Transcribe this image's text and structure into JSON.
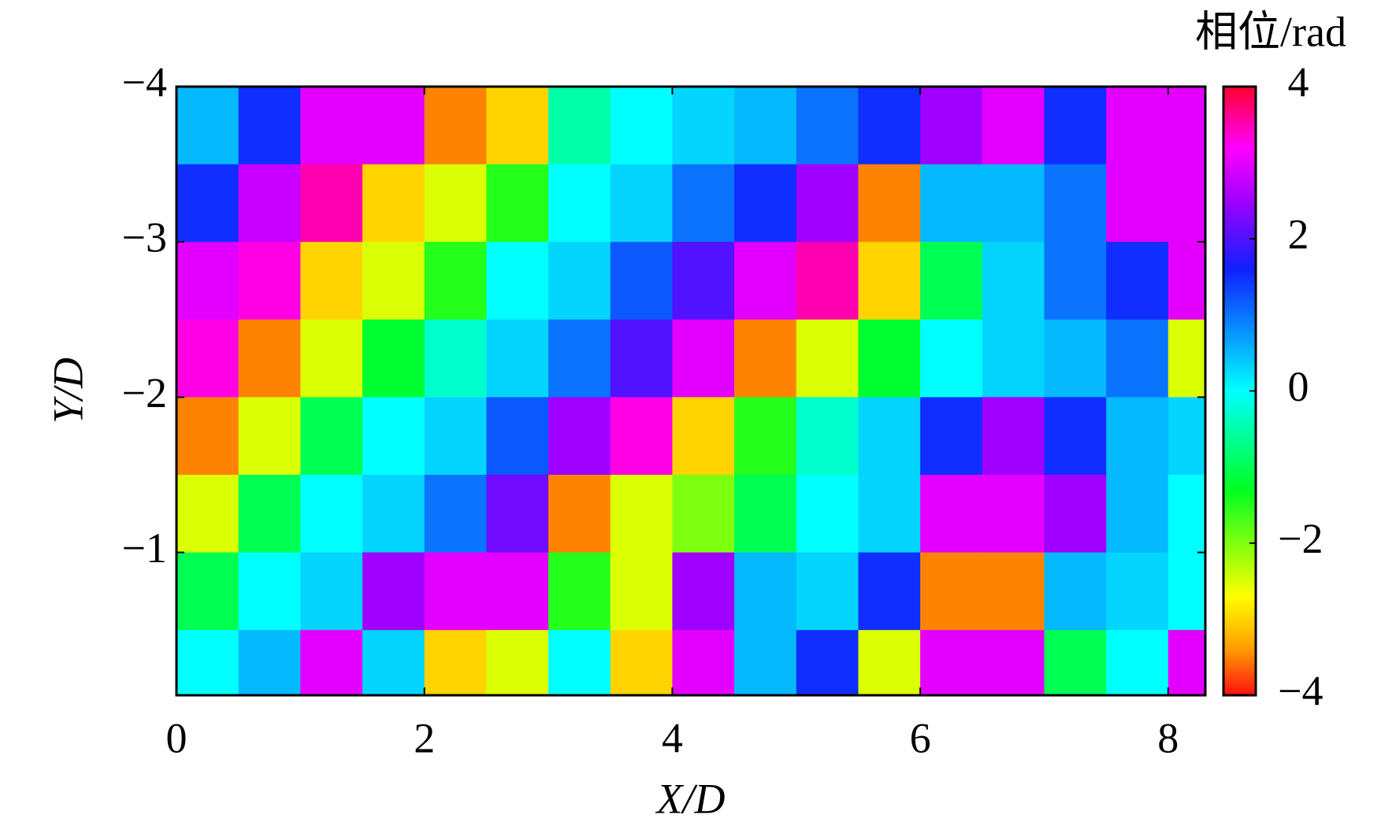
{
  "chart_data": {
    "type": "heatmap",
    "colorbar_title": "相位/rad",
    "x_label": "X/D",
    "y_label": "Y/D",
    "x": [
      0.25,
      0.75,
      1.25,
      1.75,
      2.25,
      2.75,
      3.25,
      3.75,
      4.25,
      4.75,
      5.25,
      5.75,
      6.25,
      6.75,
      7.25,
      7.75,
      8.25
    ],
    "y": [
      -3.75,
      -3.25,
      -2.75,
      -2.25,
      -1.75,
      -1.25,
      -0.75,
      -0.25
    ],
    "z": [
      [
        0.5,
        1.5,
        3,
        3,
        -3.5,
        -3,
        -0.5,
        0,
        0.3,
        0.5,
        1,
        1.5,
        2.5,
        3,
        1.5,
        3,
        3
      ],
      [
        1.5,
        2.8,
        3.5,
        -3,
        -2.5,
        -1.5,
        0,
        0.3,
        1,
        1.5,
        2.5,
        -3.5,
        0.5,
        0.5,
        1,
        3,
        3
      ],
      [
        3,
        3.3,
        -3,
        -2.5,
        -1.5,
        0,
        0.3,
        1.2,
        2,
        3,
        3.5,
        -3,
        -1,
        0.3,
        1,
        1.5,
        3
      ],
      [
        3.3,
        -3.5,
        -2.5,
        -1.2,
        -0.3,
        0.3,
        1,
        2,
        3,
        -3.5,
        -2.5,
        -1.2,
        0,
        0.3,
        0.5,
        1,
        -2.5
      ],
      [
        -3.5,
        -2.5,
        -1,
        0,
        0.3,
        1.2,
        2.5,
        3.3,
        -3,
        -1.5,
        -0.3,
        0.3,
        1.5,
        2.5,
        1.5,
        0.5,
        0.3
      ],
      [
        -2.5,
        -1,
        0,
        0.3,
        1,
        2.2,
        -3.5,
        -2.5,
        -2,
        -1,
        0,
        0.3,
        3,
        3,
        2.5,
        0.5,
        0
      ],
      [
        -1,
        0,
        0.3,
        2.5,
        3,
        3,
        -1.5,
        -2.5,
        2.5,
        0.5,
        0.3,
        1.5,
        -3.5,
        -3.5,
        0.5,
        0.3,
        0
      ],
      [
        0,
        0.5,
        3,
        0.3,
        -3,
        -2.5,
        0,
        -3,
        3,
        0.5,
        1.5,
        -2.5,
        3,
        3,
        -1,
        0,
        3
      ]
    ],
    "xlim": [
      0,
      8.3
    ],
    "ylim": [
      -4,
      -0.08
    ],
    "xticks": [
      0,
      2,
      4,
      6,
      8
    ],
    "yticks": [
      {
        "value": -4,
        "label": "−4"
      },
      {
        "value": -3,
        "label": "−3"
      },
      {
        "value": -2,
        "label": "−2"
      },
      {
        "value": -1,
        "label": "−1"
      }
    ],
    "clim": [
      -4,
      4
    ],
    "cticks": [
      {
        "value": -4,
        "label": "−4"
      },
      {
        "value": -2,
        "label": "−2"
      },
      0,
      2,
      4
    ],
    "colorscale": [
      {
        "value": -4,
        "color": "#ff1010"
      },
      {
        "value": -3.4,
        "color": "#ff9a00"
      },
      {
        "value": -2.7,
        "color": "#ffff00"
      },
      {
        "value": -1.3,
        "color": "#00ff20"
      },
      {
        "value": 0,
        "color": "#00ffff"
      },
      {
        "value": 1.6,
        "color": "#1020ff"
      },
      {
        "value": 2.5,
        "color": "#a000ff"
      },
      {
        "value": 3.2,
        "color": "#ff00ff"
      },
      {
        "value": 4,
        "color": "#ff0030"
      }
    ]
  }
}
